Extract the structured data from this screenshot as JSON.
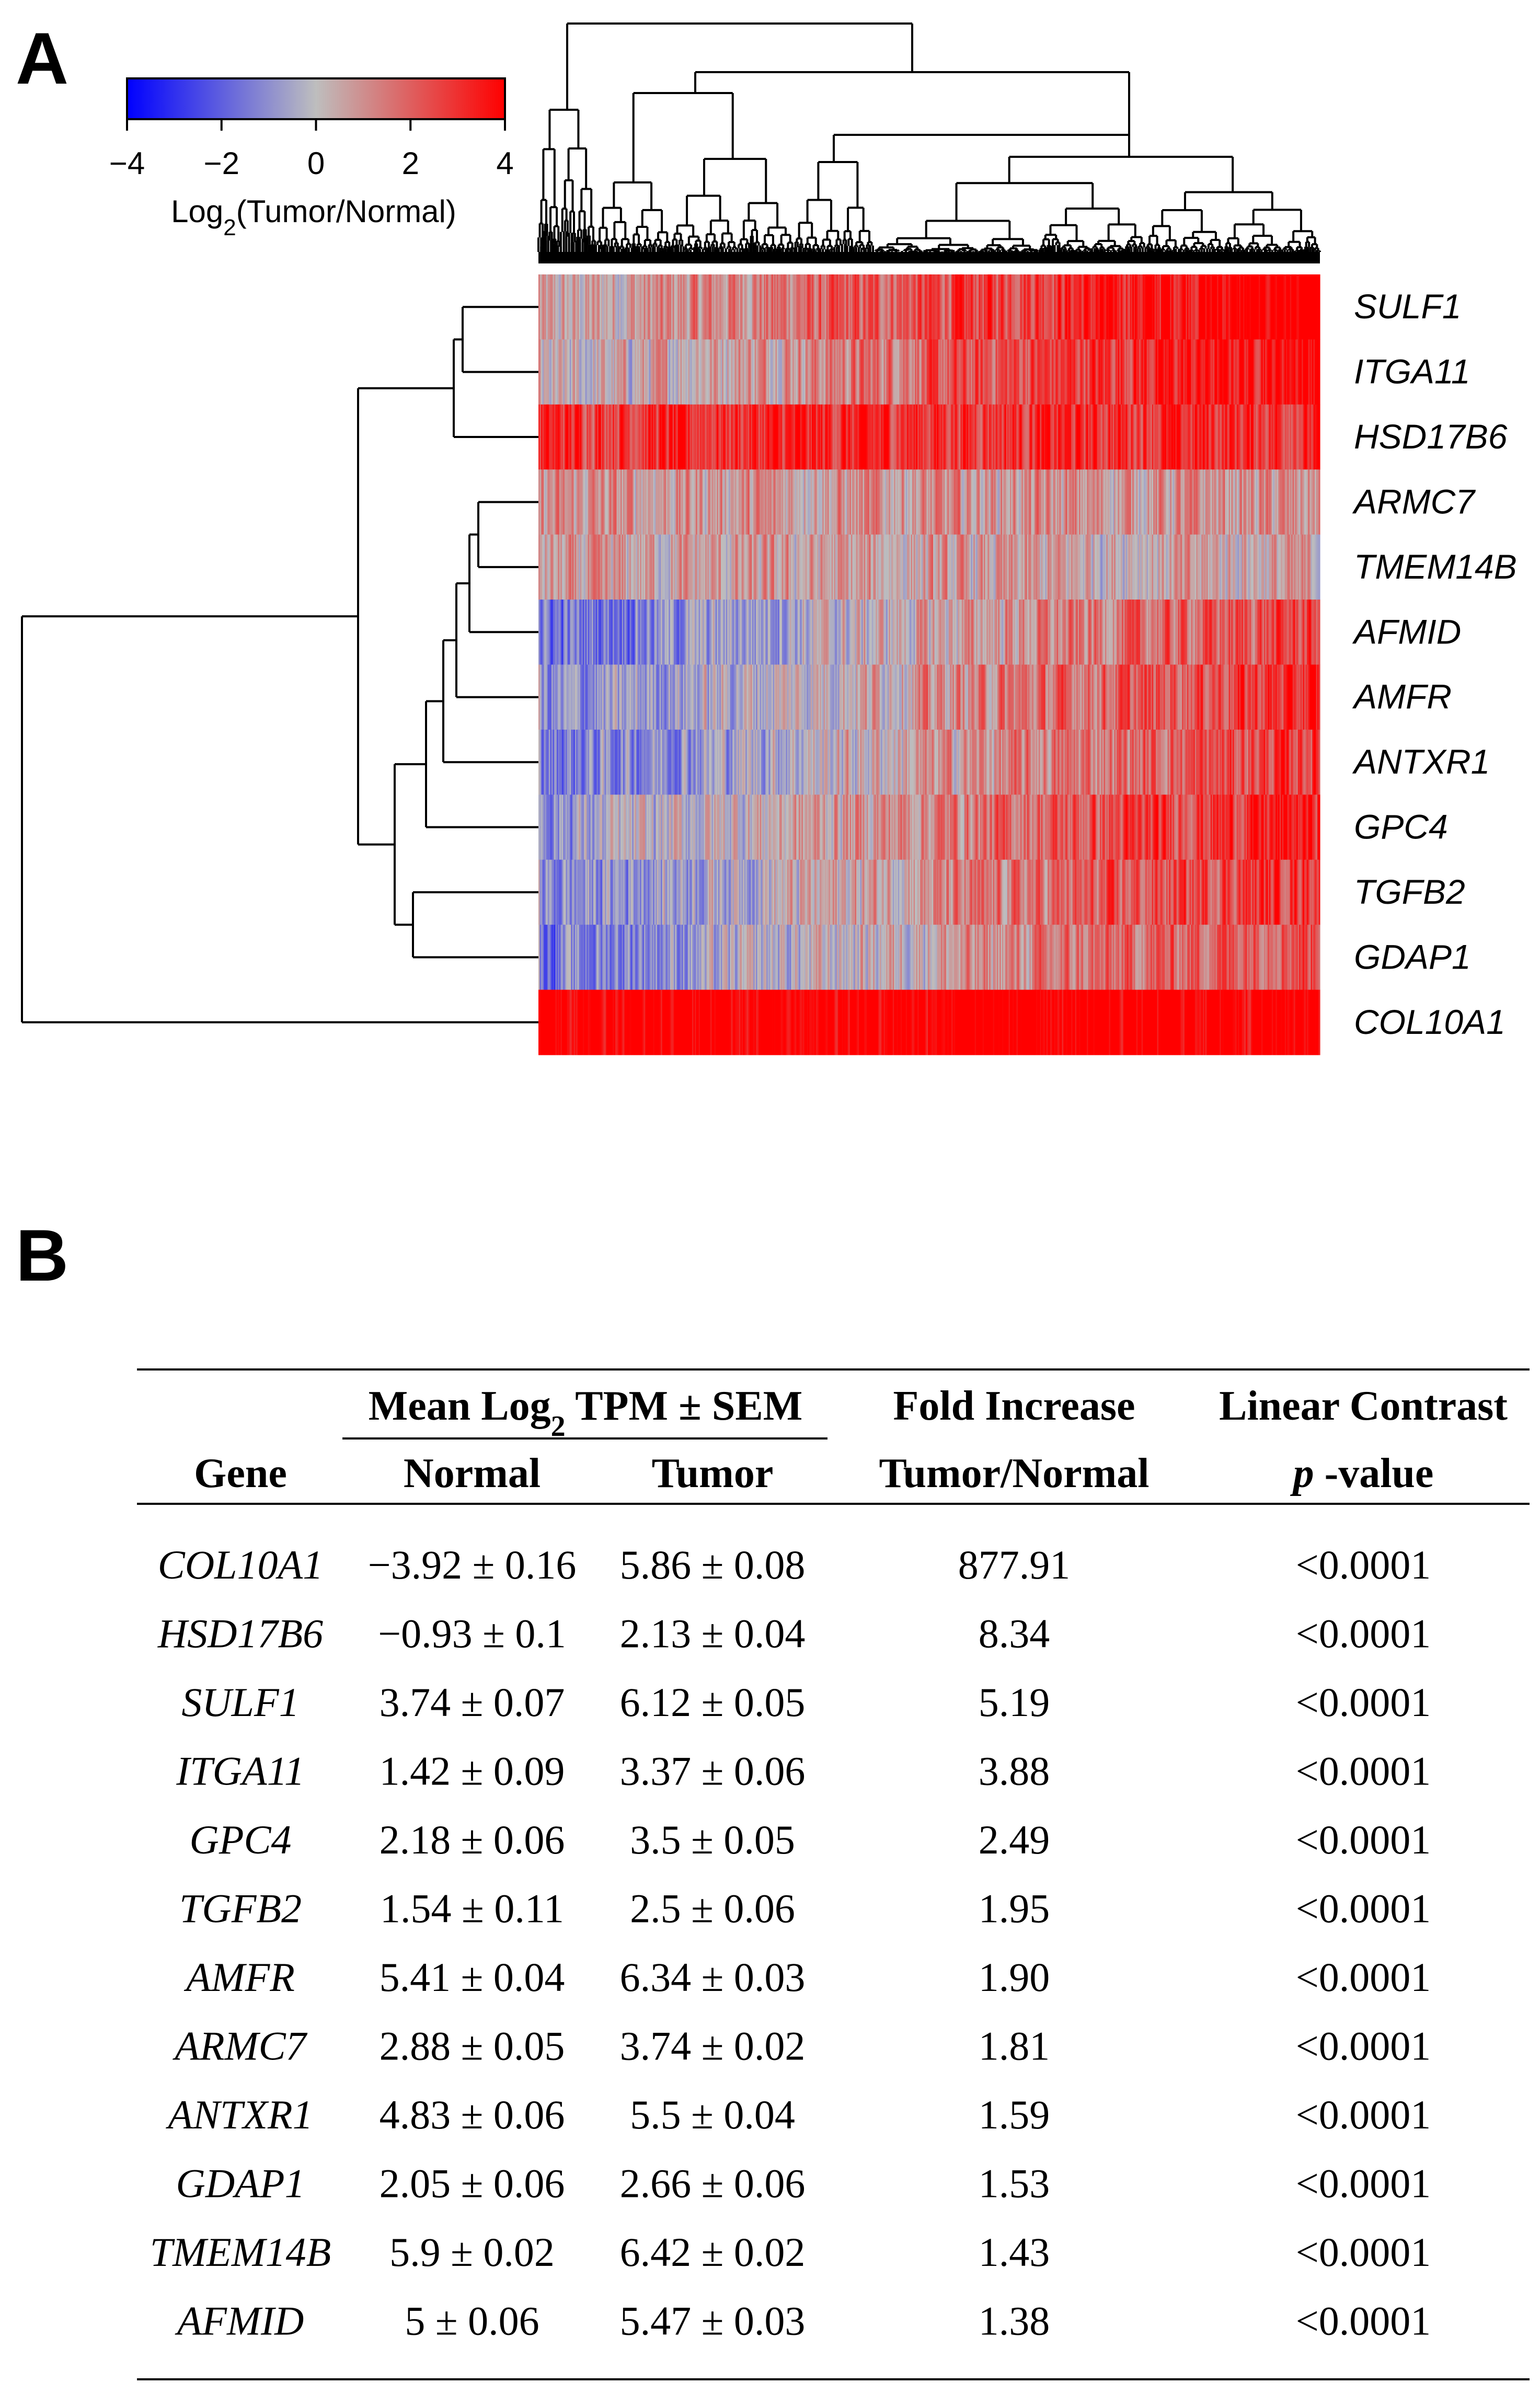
{
  "panel_a_label": "A",
  "panel_b_label": "B",
  "chart_data": {
    "type": "heatmap",
    "title": "",
    "colorbar": {
      "label": "Log2(Tumor/Normal)",
      "label_base": "Log",
      "label_sub": "2",
      "label_rest": "(Tumor/Normal)",
      "range": [
        -4,
        4
      ],
      "ticks": [
        -4,
        -2,
        0,
        2,
        4
      ],
      "tick_labels": [
        "−4",
        "−2",
        "0",
        "2",
        "4"
      ],
      "colors": {
        "low": "#0000ff",
        "mid": "#bebebe",
        "high": "#ff0000"
      }
    },
    "row_genes": [
      "SULF1",
      "ITGA11",
      "HSD17B6",
      "ARMC7",
      "TMEM14B",
      "AFMID",
      "AMFR",
      "ANTXR1",
      "GPC4",
      "TGFB2",
      "GDAP1",
      "COL10A1"
    ],
    "row_mean_log2fc": [
      2.38,
      1.95,
      3.06,
      0.86,
      0.52,
      0.47,
      0.93,
      0.67,
      1.32,
      0.96,
      0.61,
      9.78
    ],
    "row_dendrogram": "(((SULF1,ITGA11),HSD17B6),((((((ARMC7,TMEM14B),AFMID),AMFR),ANTXR1),GPC4),(TGFB2,GDAP1))),COL10A1)",
    "column_dendrogram": "hierarchical clustering of tumor samples (columns)",
    "column_samples_note": "many tumor samples clustered along x-axis"
  },
  "table": {
    "header_group": "Mean Log2 TPM ± SEM",
    "header_group_base": "Mean Log",
    "header_group_sub": "2",
    "header_group_rest": " TPM ± SEM",
    "columns": {
      "gene": "Gene",
      "normal": "Normal",
      "tumor": "Tumor",
      "fold_top": "Fold Increase",
      "fold_bottom": "Tumor/Normal",
      "p_top": "Linear Contrast",
      "p_bottom_italic": "p",
      "p_bottom_rest": " -value"
    },
    "rows": [
      {
        "gene": "COL10A1",
        "normal": "−3.92 ± 0.16",
        "tumor": "5.86 ± 0.08",
        "fold": "877.91",
        "p": "<0.0001"
      },
      {
        "gene": "HSD17B6",
        "normal": "−0.93 ± 0.1",
        "tumor": "2.13 ± 0.04",
        "fold": "8.34",
        "p": "<0.0001"
      },
      {
        "gene": "SULF1",
        "normal": "3.74 ± 0.07",
        "tumor": "6.12 ± 0.05",
        "fold": "5.19",
        "p": "<0.0001"
      },
      {
        "gene": "ITGA11",
        "normal": "1.42 ± 0.09",
        "tumor": "3.37 ± 0.06",
        "fold": "3.88",
        "p": "<0.0001"
      },
      {
        "gene": "GPC4",
        "normal": "2.18 ± 0.06",
        "tumor": "3.5 ± 0.05",
        "fold": "2.49",
        "p": "<0.0001"
      },
      {
        "gene": "TGFB2",
        "normal": "1.54 ± 0.11",
        "tumor": "2.5 ± 0.06",
        "fold": "1.95",
        "p": "<0.0001"
      },
      {
        "gene": "AMFR",
        "normal": "5.41 ± 0.04",
        "tumor": "6.34 ± 0.03",
        "fold": "1.90",
        "p": "<0.0001"
      },
      {
        "gene": "ARMC7",
        "normal": "2.88 ± 0.05",
        "tumor": "3.74 ± 0.02",
        "fold": "1.81",
        "p": "<0.0001"
      },
      {
        "gene": "ANTXR1",
        "normal": "4.83 ± 0.06",
        "tumor": "5.5 ± 0.04",
        "fold": "1.59",
        "p": "<0.0001"
      },
      {
        "gene": "GDAP1",
        "normal": "2.05 ± 0.06",
        "tumor": "2.66 ± 0.06",
        "fold": "1.53",
        "p": "<0.0001"
      },
      {
        "gene": "TMEM14B",
        "normal": "5.9 ± 0.02",
        "tumor": "6.42 ± 0.02",
        "fold": "1.43",
        "p": "<0.0001"
      },
      {
        "gene": "AFMID",
        "normal": "5 ± 0.06",
        "tumor": "5.47 ± 0.03",
        "fold": "1.38",
        "p": "<0.0001"
      }
    ]
  }
}
